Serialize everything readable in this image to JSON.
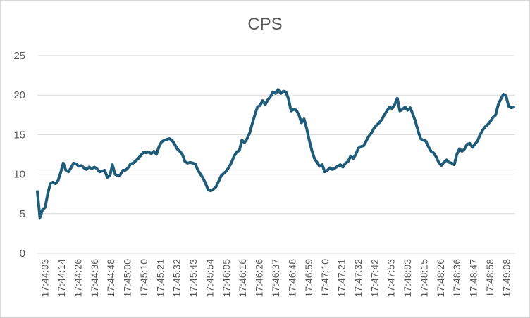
{
  "chart_data": {
    "type": "line",
    "title": "CPS",
    "xlabel": "",
    "ylabel": "",
    "ylim": [
      0,
      25
    ],
    "yticks": [
      0,
      5,
      10,
      15,
      20,
      25
    ],
    "x_tick_labels": [
      "17:44:03",
      "17:44:14",
      "17:44:26",
      "17:44:36",
      "17:44:48",
      "17:45:00",
      "17:45:10",
      "17:45:21",
      "17:45:32",
      "17:45:43",
      "17:45:54",
      "17:46:05",
      "17:46:16",
      "17:46:26",
      "17:46:37",
      "17:46:48",
      "17:46:59",
      "17:47:10",
      "17:47:21",
      "17:47:32",
      "17:47:42",
      "17:47:53",
      "17:48:03",
      "17:48:15",
      "17:48:26",
      "17:48:36",
      "17:48:47",
      "17:48:58",
      "17:49:08"
    ],
    "grid": true,
    "legend": "none",
    "series": [
      {
        "color": "#1f5c7a",
        "values": [
          7.8,
          4.5,
          5.5,
          5.8,
          7.5,
          8.8,
          9.0,
          8.8,
          9.2,
          10.2,
          11.4,
          10.5,
          10.3,
          10.8,
          11.4,
          11.3,
          11.0,
          11.1,
          10.8,
          10.6,
          10.9,
          10.7,
          10.9,
          10.7,
          10.3,
          10.4,
          10.5,
          9.6,
          9.8,
          11.2,
          10.0,
          9.8,
          9.9,
          10.5,
          10.5,
          10.8,
          11.3,
          11.4,
          11.7,
          12.0,
          12.4,
          12.8,
          12.7,
          12.8,
          12.6,
          12.9,
          12.5,
          13.5,
          14.1,
          14.3,
          14.4,
          14.5,
          14.3,
          13.8,
          13.2,
          12.9,
          12.5,
          11.6,
          11.4,
          11.5,
          11.4,
          11.3,
          10.5,
          10.0,
          9.5,
          8.8,
          8.0,
          7.9,
          8.1,
          8.4,
          9.1,
          9.8,
          10.1,
          10.4,
          10.9,
          11.5,
          12.3,
          12.8,
          13.0,
          14.3,
          14.0,
          14.5,
          15.2,
          16.4,
          17.5,
          18.5,
          18.7,
          19.3,
          18.8,
          19.4,
          19.8,
          20.4,
          20.2,
          20.7,
          20.2,
          20.5,
          20.4,
          19.5,
          18.0,
          18.2,
          18.1,
          17.5,
          16.5,
          17.0,
          15.8,
          14.3,
          13.0,
          12.0,
          11.5,
          11.0,
          11.2,
          10.3,
          10.5,
          10.8,
          10.6,
          10.8,
          11.0,
          11.2,
          10.9,
          11.4,
          11.6,
          12.3,
          12.0,
          12.5,
          13.3,
          13.5,
          13.6,
          14.2,
          14.8,
          15.2,
          15.8,
          16.2,
          16.5,
          16.9,
          17.5,
          18.0,
          18.5,
          18.3,
          18.8,
          19.6,
          18.0,
          18.2,
          18.5,
          18.1,
          18.4,
          17.6,
          16.7,
          15.5,
          14.5,
          14.3,
          14.2,
          13.5,
          12.9,
          12.7,
          12.2,
          11.5,
          11.1,
          11.5,
          11.8,
          11.5,
          11.4,
          11.2,
          12.5,
          13.2,
          12.9,
          13.2,
          13.8,
          13.9,
          13.4,
          13.8,
          14.2,
          15.0,
          15.6,
          16.0,
          16.3,
          16.7,
          17.2,
          17.5,
          18.8,
          19.5,
          20.1,
          19.9,
          18.6,
          18.4,
          18.5
        ]
      }
    ]
  }
}
